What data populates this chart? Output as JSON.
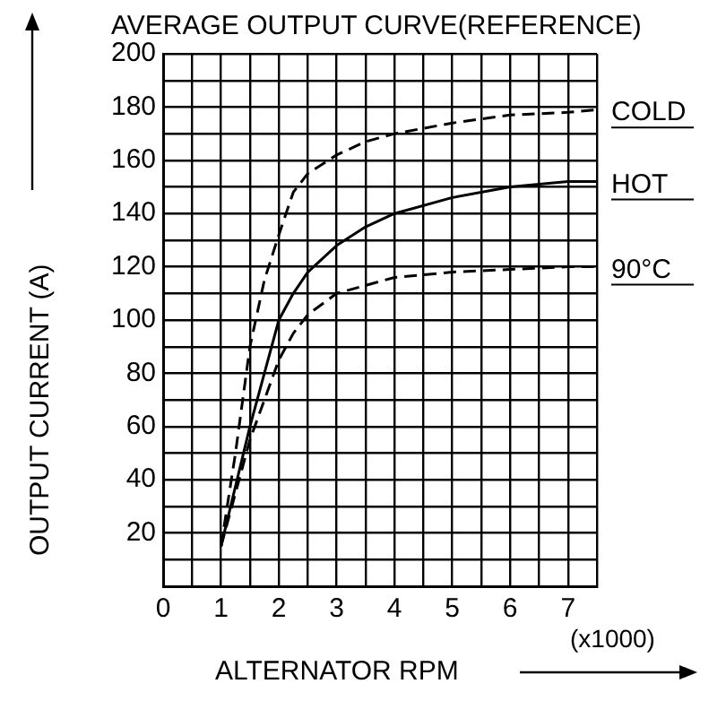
{
  "chart_data": {
    "type": "line",
    "title": "AVERAGE OUTPUT CURVE(REFERENCE)",
    "xlabel": "ALTERNATOR RPM",
    "ylabel": "OUTPUT CURRENT (A)",
    "annotations": [
      "(x1000)"
    ],
    "xlim": [
      0,
      7.5
    ],
    "ylim": [
      0,
      200
    ],
    "xticks": [
      0,
      {
        "value": 0.5,
        "label": null
      },
      1,
      {
        "value": 1.5,
        "label": null
      },
      2,
      {
        "value": 2.5,
        "label": null
      },
      3,
      {
        "value": 3.5,
        "label": null
      },
      4,
      {
        "value": 4.5,
        "label": null
      },
      5,
      {
        "value": 5.5,
        "label": null
      },
      6,
      {
        "value": 6.5,
        "label": null
      },
      7,
      {
        "value": 7.5,
        "label": null
      }
    ],
    "yticks": [
      {
        "value": 0,
        "label": null
      },
      {
        "value": 10,
        "label": null
      },
      20,
      {
        "value": 30,
        "label": null
      },
      40,
      {
        "value": 50,
        "label": null
      },
      60,
      {
        "value": 70,
        "label": null
      },
      80,
      {
        "value": 90,
        "label": null
      },
      100,
      {
        "value": 110,
        "label": null
      },
      120,
      {
        "value": 130,
        "label": null
      },
      140,
      {
        "value": 150,
        "label": null
      },
      160,
      {
        "value": 170,
        "label": null
      },
      180,
      {
        "value": 190,
        "label": null
      },
      200
    ],
    "grid": true,
    "legend": false,
    "marker": "none",
    "series": [
      {
        "name": "COLD",
        "color": "#000000",
        "line_style": "dashed",
        "x": [
          1,
          1.25,
          1.5,
          1.75,
          2,
          2.25,
          2.5,
          3,
          3.5,
          4,
          5,
          6,
          7,
          7.5
        ],
        "values": [
          15,
          50,
          90,
          115,
          132,
          148,
          155,
          162,
          167,
          170,
          174,
          177,
          178,
          179
        ]
      },
      {
        "name": "HOT",
        "color": "#000000",
        "line_style": "solid",
        "x": [
          1,
          1.5,
          1.75,
          2,
          2.25,
          2.5,
          3,
          3.5,
          4,
          5,
          6,
          7,
          7.5
        ],
        "values": [
          15,
          60,
          80,
          100,
          110,
          118,
          128,
          135,
          140,
          146,
          150,
          152,
          152
        ]
      },
      {
        "name": "90°C",
        "color": "#000000",
        "line_style": "dashed",
        "x": [
          1,
          1.5,
          1.75,
          2,
          2.25,
          2.5,
          3,
          3.5,
          4,
          5,
          6,
          7,
          7.5
        ],
        "values": [
          15,
          55,
          70,
          85,
          95,
          102,
          110,
          113,
          116,
          118,
          119,
          120,
          120
        ]
      }
    ]
  }
}
